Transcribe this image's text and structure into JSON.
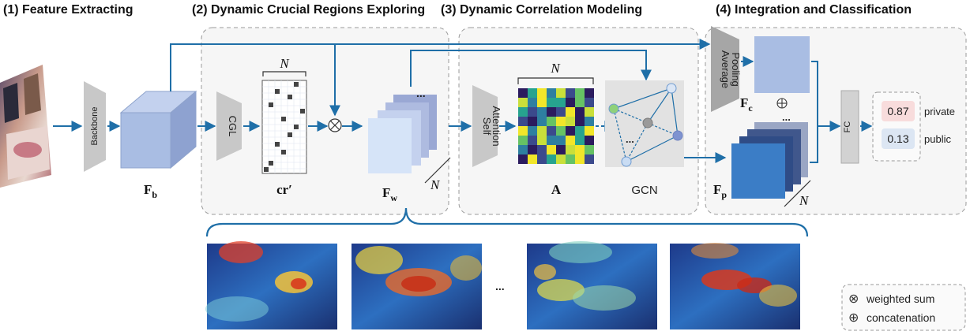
{
  "stages": [
    {
      "title": "(1) Feature Extracting"
    },
    {
      "title": "(2) Dynamic Crucial Regions Exploring"
    },
    {
      "title": "(3) Dynamic Correlation Modeling"
    },
    {
      "title": "(4) Integration and Classification"
    }
  ],
  "modules": {
    "backbone": "Backbone",
    "cgl": "CGL",
    "self_attention_line1": "Self",
    "self_attention_line2": "Attention",
    "pooling_line1": "Average",
    "pooling_line2": "Pooling",
    "gcn": "GCN",
    "fc": "FC"
  },
  "features": {
    "fb_main": "F",
    "fb_sub": "b",
    "cr": "cr′",
    "fw_main": "F",
    "fw_sub": "w",
    "a": "A",
    "fc_main": "F",
    "fc_sub": "c",
    "fp_main": "F",
    "fp_sub": "p",
    "n": "N",
    "ellipsis": "..."
  },
  "output": [
    {
      "value": "0.87",
      "label": "private",
      "color": "#f8dcdc"
    },
    {
      "value": "0.13",
      "label": "public",
      "color": "#dce6f3"
    }
  ],
  "legend": [
    {
      "symbol": "⊗",
      "label": "weighted sum"
    },
    {
      "symbol": "⊕",
      "label": "concatenation"
    }
  ],
  "colors": {
    "arrow": "#1f6fa8",
    "cube_front": "#a9bde3",
    "panel_border": "#9a9a9a",
    "panel_fill": "#f5f5f5"
  }
}
